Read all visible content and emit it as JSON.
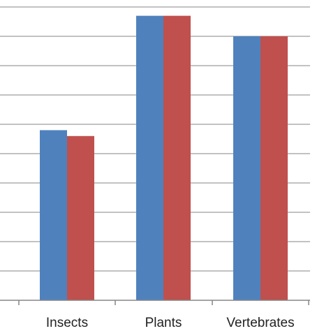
{
  "chart_data": {
    "type": "bar",
    "categories": [
      "Insects",
      "Plants",
      "Vertebrates"
    ],
    "series": [
      {
        "values": [
          5.8,
          9.7,
          9.0
        ]
      },
      {
        "values": [
          5.6,
          9.7,
          9.0
        ]
      }
    ],
    "ylim": [
      0,
      10
    ],
    "grid": true,
    "legend": "none",
    "colors": [
      "#4f81bd",
      "#c0504d"
    ],
    "grid_color": "#868686",
    "axis_color": "#868686"
  }
}
